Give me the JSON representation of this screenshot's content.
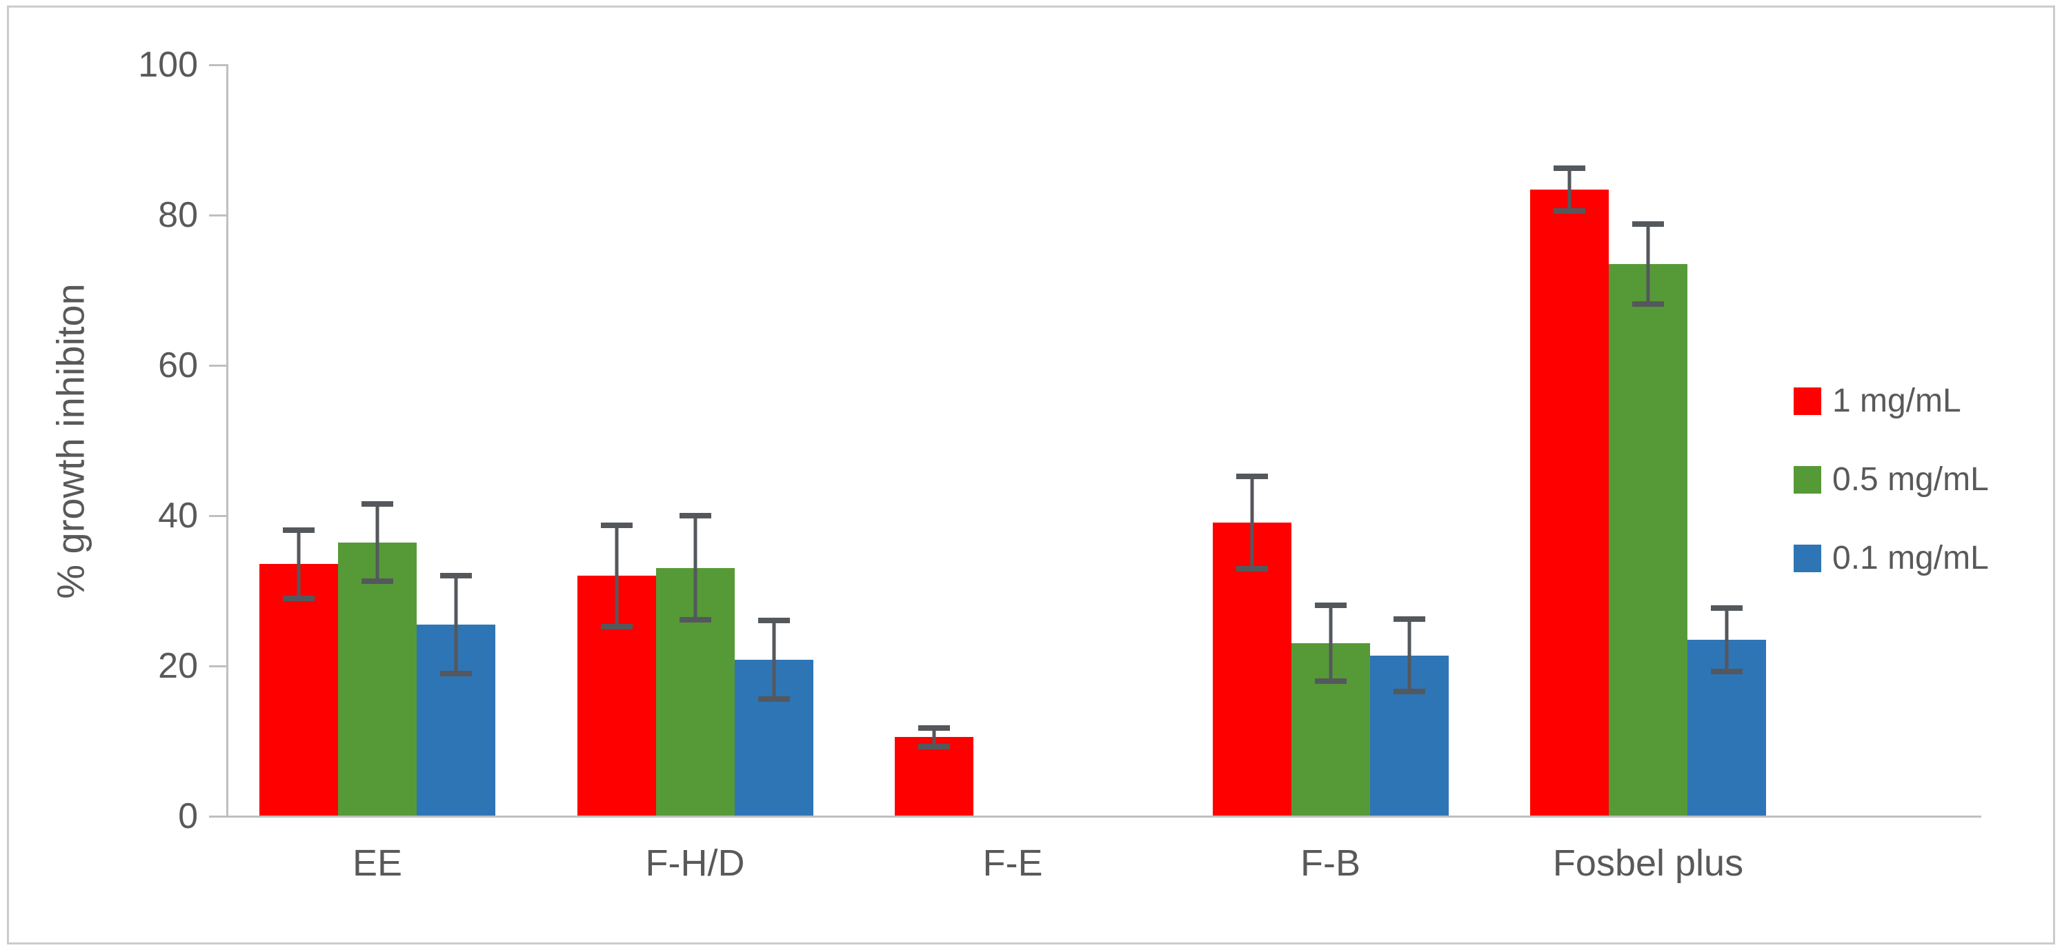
{
  "figure": {
    "background": "#FFFFFF",
    "border_color": "#CCCCCC",
    "text_color": "#595959",
    "axis_color": "#BFBFBF",
    "error_bar_color": "#54585C"
  },
  "chart_data": {
    "type": "bar",
    "title": "",
    "xlabel": "",
    "ylabel": "% growth inhibiton",
    "ylim": [
      0,
      100
    ],
    "yticks": [
      0,
      20,
      40,
      60,
      80,
      100
    ],
    "grid": false,
    "legend_position": "right",
    "categories": [
      "EE",
      "F-H/D",
      "F-E",
      "F-B",
      "Fosbel plus"
    ],
    "series": [
      {
        "name": "1 mg/mL",
        "color": "#FF0000",
        "values": [
          33.5,
          31.9,
          10.5,
          39.0,
          83.3
        ],
        "errors": [
          4.9,
          7.1,
          1.6,
          6.5,
          3.2
        ]
      },
      {
        "name": "0.5 mg/mL",
        "color": "#569A37",
        "values": [
          36.3,
          32.9,
          0,
          22.9,
          73.4
        ],
        "errors": [
          5.5,
          7.3,
          0,
          5.4,
          5.7
        ]
      },
      {
        "name": "0.1 mg/mL",
        "color": "#2E75B6",
        "values": [
          25.4,
          20.7,
          0,
          21.3,
          23.4
        ],
        "errors": [
          6.9,
          5.6,
          0,
          5.2,
          4.6
        ]
      }
    ]
  }
}
